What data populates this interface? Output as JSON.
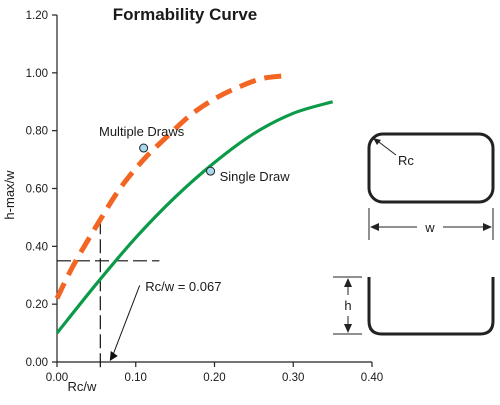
{
  "chart_data": {
    "type": "line",
    "title": "Formability Curve",
    "xlabel": "Rc/w",
    "ylabel": "h-max/w",
    "xlim": [
      0,
      0.4
    ],
    "ylim": [
      0,
      1.2
    ],
    "xticks": [
      "0.00",
      "0.10",
      "0.20",
      "0.30",
      "0.40"
    ],
    "yticks": [
      "0.00",
      "0.20",
      "0.40",
      "0.60",
      "0.80",
      "1.00",
      "1.20"
    ],
    "grid": false,
    "series": [
      {
        "name": "Multiple Draws",
        "style": "dashed",
        "color": "#f26522",
        "x": [
          0.0,
          0.02,
          0.05,
          0.08,
          0.11,
          0.14,
          0.17,
          0.2,
          0.23,
          0.26,
          0.29
        ],
        "y": [
          0.22,
          0.33,
          0.47,
          0.6,
          0.7,
          0.78,
          0.855,
          0.91,
          0.95,
          0.98,
          0.99
        ]
      },
      {
        "name": "Single Draw",
        "style": "solid",
        "color": "#0b9a48",
        "x": [
          0.0,
          0.05,
          0.1,
          0.15,
          0.2,
          0.25,
          0.3,
          0.35
        ],
        "y": [
          0.1,
          0.27,
          0.43,
          0.57,
          0.69,
          0.79,
          0.86,
          0.9
        ]
      }
    ],
    "markers": [
      {
        "label": "Multiple Draws",
        "x": 0.11,
        "y": 0.74
      },
      {
        "label": "Single Draw",
        "x": 0.195,
        "y": 0.66
      }
    ],
    "reference": {
      "annotation": "Rc/w = 0.067",
      "x": 0.067,
      "y": 0.35
    },
    "diagram": {
      "radius_label": "Rc",
      "width_label": "w",
      "height_label": "h"
    }
  }
}
